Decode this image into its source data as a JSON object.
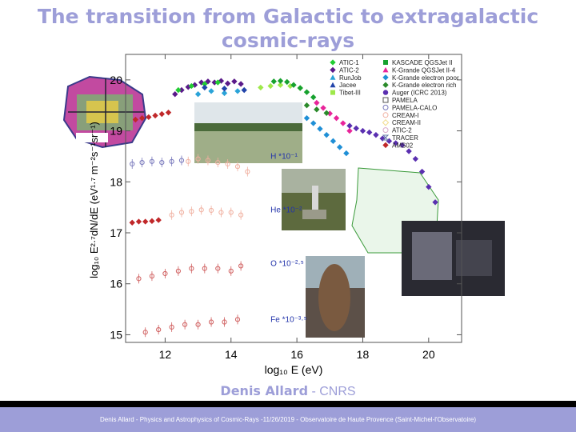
{
  "slide": {
    "title": "The transition from Galactic to extragalactic cosmic-rays",
    "author_name": "Denis Allard",
    "author_sep": " - ",
    "author_org": "CNRS",
    "footer": "Denis Allard - Physics and Astrophysics of Cosmic-Rays -11/26/2019 - Observatoire de Haute Provence (Saint-Michel-l'Observatoire)"
  },
  "chart_data": {
    "type": "scatter",
    "xlabel": "log₁₀ E (eV)",
    "ylabel": "log₁₀ E²·⁷dN/dE (eV¹·⁷ m⁻²s⁻¹sr⁻¹)",
    "xlim": [
      10.8,
      21.0
    ],
    "ylim": [
      14.85,
      20.5
    ],
    "xticks": [
      "12",
      "14",
      "16",
      "18",
      "20"
    ],
    "yticks": [
      "15",
      "16",
      "17",
      "18",
      "19",
      "20"
    ],
    "annotations": [
      {
        "text": "H *10⁻¹",
        "x": 15.2,
        "y": 18.45
      },
      {
        "text": "He *10⁻²",
        "x": 15.2,
        "y": 17.4
      },
      {
        "text": "O *10⁻²·⁵",
        "x": 15.2,
        "y": 16.35
      },
      {
        "text": "Fe *10⁻³·⁵",
        "x": 15.2,
        "y": 15.25
      }
    ],
    "legend_left": [
      {
        "name": "ATIC-1",
        "color": "#22cc33",
        "marker": "diamond"
      },
      {
        "name": "ATIC-2",
        "color": "#5a1a8a",
        "marker": "diamond"
      },
      {
        "name": "RunJob",
        "color": "#2aa3d8",
        "marker": "triangle"
      },
      {
        "name": "Jacee",
        "color": "#2244aa",
        "marker": "triangle"
      },
      {
        "name": "Tibet-III",
        "color": "#9ee84a",
        "marker": "square"
      }
    ],
    "legend_right": [
      {
        "name": "KASCADE QGSJet II",
        "color": "#16a12e",
        "marker": "square"
      },
      {
        "name": "K-Grande QGSJet II-4",
        "color": "#e8259a",
        "marker": "triangle"
      },
      {
        "name": "K-Grande electron poor",
        "color": "#1f8fd6",
        "marker": "diamond"
      },
      {
        "name": "K-Grande electron rich",
        "color": "#2a8a2a",
        "marker": "diamond"
      },
      {
        "name": "Auger (ICRC 2013)",
        "color": "#5a2fb0",
        "marker": "circle"
      },
      {
        "name": "PAMELA",
        "color": "#555555",
        "marker": "open-square"
      },
      {
        "name": "PAMELA-CALO",
        "color": "#7777bb",
        "marker": "open-circle"
      },
      {
        "name": "CREAM-I",
        "color": "#f0b0a0",
        "marker": "open-circle"
      },
      {
        "name": "CREAM-II",
        "color": "#f2dc8a",
        "marker": "open-diamond"
      },
      {
        "name": "ATIC-2",
        "color": "#d9aacc",
        "marker": "open-circle"
      },
      {
        "name": "TRACER",
        "color": "#6677aa",
        "marker": "hourglass"
      },
      {
        "name": "AMS02",
        "color": "#c0282a",
        "marker": "diamond"
      }
    ],
    "series": [
      {
        "name": "AMS02",
        "color": "#c0282a",
        "points": [
          [
            11.1,
            19.22
          ],
          [
            11.3,
            19.25
          ],
          [
            11.5,
            19.27
          ],
          [
            11.7,
            19.3
          ],
          [
            11.9,
            19.33
          ],
          [
            12.1,
            19.36
          ]
        ]
      },
      {
        "name": "ATIC-2",
        "color": "#5a1a8a",
        "points": [
          [
            12.3,
            19.72
          ],
          [
            12.5,
            19.8
          ],
          [
            12.7,
            19.86
          ],
          [
            12.9,
            19.9
          ],
          [
            13.1,
            19.95
          ],
          [
            13.3,
            19.97
          ],
          [
            13.5,
            19.95
          ],
          [
            13.7,
            19.98
          ],
          [
            13.9,
            19.93
          ],
          [
            14.1,
            19.97
          ],
          [
            14.3,
            19.92
          ]
        ]
      },
      {
        "name": "ATIC-1",
        "color": "#22cc33",
        "points": [
          [
            12.4,
            19.8
          ],
          [
            12.8,
            19.88
          ],
          [
            13.2,
            19.92
          ],
          [
            13.6,
            19.95
          ]
        ]
      },
      {
        "name": "RunJob",
        "color": "#2aa3d8",
        "points": [
          [
            13.0,
            19.72
          ],
          [
            13.4,
            19.78
          ],
          [
            13.8,
            19.74
          ],
          [
            14.2,
            19.78
          ]
        ]
      },
      {
        "name": "Jacee",
        "color": "#2244aa",
        "points": [
          [
            13.2,
            19.85
          ],
          [
            13.8,
            19.83
          ],
          [
            14.4,
            19.8
          ]
        ]
      },
      {
        "name": "Tibet-III",
        "color": "#9ee84a",
        "points": [
          [
            14.9,
            19.85
          ],
          [
            15.2,
            19.88
          ],
          [
            15.5,
            19.9
          ],
          [
            15.8,
            19.88
          ],
          [
            16.1,
            19.84
          ]
        ]
      },
      {
        "name": "KASCADE QGSJet II",
        "color": "#16a12e",
        "points": [
          [
            15.3,
            19.97
          ],
          [
            15.5,
            19.98
          ],
          [
            15.7,
            19.96
          ],
          [
            15.9,
            19.9
          ],
          [
            16.1,
            19.84
          ],
          [
            16.3,
            19.76
          ],
          [
            16.5,
            19.66
          ]
        ]
      },
      {
        "name": "K-Grande QGSJet II-4",
        "color": "#e8259a",
        "points": [
          [
            16.6,
            19.55
          ],
          [
            16.8,
            19.45
          ],
          [
            17.0,
            19.34
          ],
          [
            17.2,
            19.25
          ],
          [
            17.4,
            19.15
          ],
          [
            17.6,
            19.0
          ]
        ]
      },
      {
        "name": "K-Grande electron poor",
        "color": "#1f8fd6",
        "points": [
          [
            16.3,
            19.25
          ],
          [
            16.5,
            19.15
          ],
          [
            16.7,
            19.04
          ],
          [
            16.9,
            18.92
          ],
          [
            17.1,
            18.8
          ],
          [
            17.3,
            18.68
          ],
          [
            17.5,
            18.56
          ]
        ]
      },
      {
        "name": "K-Grande electron rich",
        "color": "#2a8a2a",
        "points": [
          [
            16.3,
            19.5
          ],
          [
            16.6,
            19.42
          ],
          [
            16.9,
            19.35
          ]
        ]
      },
      {
        "name": "Auger (ICRC 2013)",
        "color": "#5a2fb0",
        "points": [
          [
            17.6,
            19.1
          ],
          [
            17.8,
            19.05
          ],
          [
            18.0,
            19.0
          ],
          [
            18.2,
            18.97
          ],
          [
            18.4,
            18.92
          ],
          [
            18.6,
            18.85
          ],
          [
            18.8,
            18.8
          ],
          [
            19.0,
            18.76
          ],
          [
            19.2,
            18.72
          ],
          [
            19.4,
            18.6
          ],
          [
            19.6,
            18.45
          ],
          [
            19.8,
            18.2
          ],
          [
            20.0,
            17.9
          ],
          [
            20.2,
            17.6
          ]
        ]
      },
      {
        "name": "PAMELA H",
        "color": "#7777bb",
        "points": [
          [
            11.0,
            18.35
          ],
          [
            11.3,
            18.38
          ],
          [
            11.6,
            18.4
          ],
          [
            11.9,
            18.38
          ],
          [
            12.2,
            18.4
          ],
          [
            12.5,
            18.42
          ]
        ]
      },
      {
        "name": "CREAM H",
        "color": "#f0b0a0",
        "points": [
          [
            12.7,
            18.4
          ],
          [
            13.0,
            18.45
          ],
          [
            13.3,
            18.42
          ],
          [
            13.6,
            18.38
          ],
          [
            13.9,
            18.35
          ],
          [
            14.2,
            18.3
          ],
          [
            14.5,
            18.2
          ]
        ]
      },
      {
        "name": "AMS02 He",
        "color": "#c0282a",
        "points": [
          [
            11.0,
            17.2
          ],
          [
            11.2,
            17.22
          ],
          [
            11.4,
            17.22
          ],
          [
            11.6,
            17.23
          ],
          [
            11.8,
            17.25
          ]
        ]
      },
      {
        "name": "CREAM He",
        "color": "#f0b0a0",
        "points": [
          [
            12.2,
            17.35
          ],
          [
            12.5,
            17.4
          ],
          [
            12.8,
            17.42
          ],
          [
            13.1,
            17.45
          ],
          [
            13.4,
            17.44
          ],
          [
            13.7,
            17.4
          ],
          [
            14.0,
            17.4
          ],
          [
            14.3,
            17.35
          ]
        ]
      },
      {
        "name": "O",
        "color": "#d06060",
        "points": [
          [
            11.2,
            16.1
          ],
          [
            11.6,
            16.15
          ],
          [
            12.0,
            16.2
          ],
          [
            12.4,
            16.25
          ],
          [
            12.8,
            16.3
          ],
          [
            13.2,
            16.3
          ],
          [
            13.6,
            16.3
          ],
          [
            14.0,
            16.25
          ],
          [
            14.3,
            16.35
          ]
        ]
      },
      {
        "name": "Fe",
        "color": "#d06060",
        "points": [
          [
            11.4,
            15.05
          ],
          [
            11.8,
            15.1
          ],
          [
            12.2,
            15.15
          ],
          [
            12.6,
            15.2
          ],
          [
            13.0,
            15.2
          ],
          [
            13.4,
            15.25
          ],
          [
            13.8,
            15.25
          ],
          [
            14.2,
            15.3
          ]
        ]
      }
    ]
  }
}
